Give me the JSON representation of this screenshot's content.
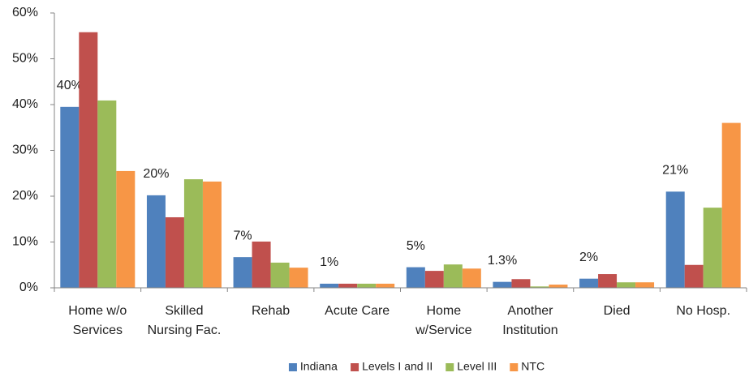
{
  "chart_data": {
    "type": "bar",
    "categories": [
      "Home w/o\nServices",
      "Skilled\nNursing Fac.",
      "Rehab",
      "Acute Care",
      "Home\nw/Service",
      "Another\nInstitution",
      "Died",
      "No Hosp."
    ],
    "series": [
      {
        "name": "Indiana",
        "color": "#4f81bd",
        "values": [
          39.5,
          20.2,
          6.7,
          0.9,
          4.5,
          1.3,
          2.0,
          21.0
        ],
        "value_labels": [
          "40%",
          "20%",
          "7%",
          "1%",
          "5%",
          "1.3%",
          "2%",
          "21%"
        ]
      },
      {
        "name": "Levels I and II",
        "color": "#c0504d",
        "values": [
          55.8,
          15.4,
          10.1,
          0.9,
          3.7,
          1.9,
          3.0,
          5.0
        ]
      },
      {
        "name": "Level III",
        "color": "#9bbb59",
        "values": [
          40.9,
          23.7,
          5.5,
          0.9,
          5.1,
          0.3,
          1.2,
          17.5
        ]
      },
      {
        "name": "NTC",
        "color": "#f79646",
        "values": [
          25.5,
          23.2,
          4.4,
          0.9,
          4.2,
          0.7,
          1.2,
          36.0
        ]
      }
    ],
    "ylim": [
      0,
      60
    ],
    "yticks": [
      {
        "value": 0,
        "label": "0%"
      },
      {
        "value": 10,
        "label": "10%"
      },
      {
        "value": 20,
        "label": "20%"
      },
      {
        "value": 30,
        "label": "30%"
      },
      {
        "value": 40,
        "label": "40%"
      },
      {
        "value": 50,
        "label": "50%"
      },
      {
        "value": 60,
        "label": "60%"
      }
    ],
    "grid": false,
    "legend": "bottom"
  }
}
